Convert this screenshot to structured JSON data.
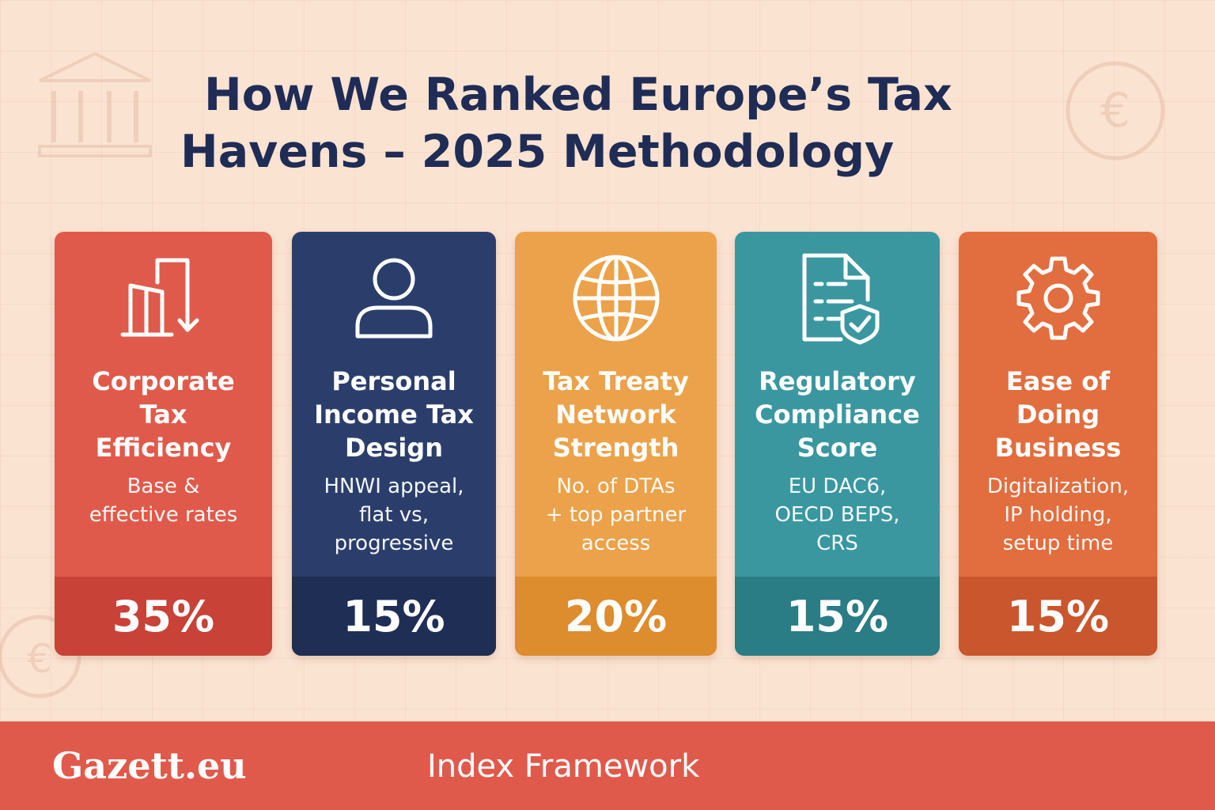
{
  "header": {
    "title_line1": "How We Ranked Europe’s Tax",
    "title_line2": "Havens – 2025 Methodology"
  },
  "cards": [
    {
      "name": "Corporate\nTax\nEfficiency",
      "description": "Base &\neffective rates",
      "weight": "35%",
      "icon": "bar-chart-decline-icon",
      "color": "#e05a4b",
      "foot_color": "#c84237"
    },
    {
      "name": "Personal\nIncome Tax\nDesign",
      "description": "HNWI appeal,\nflat vs,\nprogressive",
      "weight": "15%",
      "icon": "person-icon",
      "color": "#2b3e6b",
      "foot_color": "#1f2e55"
    },
    {
      "name": "Tax Treaty\nNetwork\nStrength",
      "description": "No. of DTAs\n+ top partner\naccess",
      "weight": "20%",
      "icon": "globe-icon",
      "color": "#eba24a",
      "foot_color": "#dd8c2e"
    },
    {
      "name": "Regulatory\nCompliance\nScore",
      "description": "EU DAC6,\nOECD BEPS,\nCRS",
      "weight": "15%",
      "icon": "document-check-icon",
      "color": "#3a97a0",
      "foot_color": "#2a7c85"
    },
    {
      "name": "Ease of\nDoing\nBusiness",
      "description": "Digitalization,\nIP holding,\nsetup time",
      "weight": "15%",
      "icon": "gear-icon",
      "color": "#e26d3e",
      "foot_color": "#c9562c"
    }
  ],
  "footer": {
    "brand": "Gazett.eu",
    "label": "Index Framework"
  }
}
